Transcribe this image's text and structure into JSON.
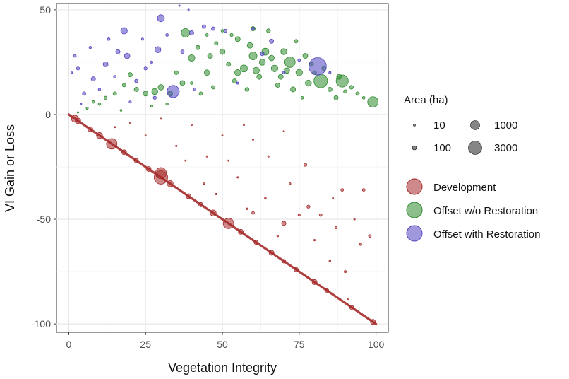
{
  "chart_data": {
    "type": "scatter",
    "xlabel": "Vegetation Integrity",
    "ylabel": "VI Gain or Loss",
    "xlim": [
      -4,
      104
    ],
    "ylim": [
      -104,
      53
    ],
    "x_ticks": [
      0,
      25,
      50,
      75,
      100
    ],
    "y_ticks": [
      -100,
      -50,
      0,
      50
    ],
    "x_tick_labels": [
      "0",
      "25",
      "50",
      "75",
      "100"
    ],
    "y_tick_labels": [
      "-100",
      "-50",
      "0",
      "50"
    ],
    "grid": true,
    "legend_placement": "right",
    "size_legend": {
      "title": "Area (ha)",
      "entries": [
        {
          "label": "10",
          "value": 10
        },
        {
          "label": "1000",
          "value": 1000
        },
        {
          "label": "100",
          "value": 100
        },
        {
          "label": "3000",
          "value": 3000
        }
      ]
    },
    "series": [
      {
        "name": "Development",
        "color": "#a52a2a",
        "diagonal_line": {
          "from": [
            0,
            0
          ],
          "to": [
            100,
            -100
          ]
        },
        "points": [
          [
            2,
            -2,
            400
          ],
          [
            3,
            -3,
            250
          ],
          [
            7,
            -7,
            200
          ],
          [
            10,
            -10,
            300
          ],
          [
            14,
            -14,
            900
          ],
          [
            18,
            -18,
            200
          ],
          [
            22,
            -22,
            150
          ],
          [
            26,
            -26,
            200
          ],
          [
            30,
            -30,
            1500
          ],
          [
            33,
            -33,
            300
          ],
          [
            39,
            -39,
            200
          ],
          [
            43,
            -43,
            150
          ],
          [
            47,
            -47,
            300
          ],
          [
            52,
            -52,
            900
          ],
          [
            56,
            -56,
            200
          ],
          [
            61,
            -61,
            150
          ],
          [
            66,
            -66,
            200
          ],
          [
            70,
            -70,
            120
          ],
          [
            74,
            -74,
            150
          ],
          [
            80,
            -80,
            200
          ],
          [
            84,
            -84,
            120
          ],
          [
            92,
            -92,
            150
          ],
          [
            99,
            -99,
            200
          ],
          [
            30,
            -28,
            1000
          ],
          [
            77,
            -24,
            80
          ],
          [
            78,
            -44,
            80
          ],
          [
            70,
            -52,
            150
          ],
          [
            82,
            -48,
            60
          ],
          [
            89,
            -36,
            60
          ],
          [
            96,
            -36,
            60
          ],
          [
            98,
            -58,
            60
          ],
          [
            95,
            -62,
            40
          ],
          [
            87,
            -54,
            40
          ],
          [
            60,
            -47,
            60
          ],
          [
            75,
            -48,
            40
          ],
          [
            90,
            -75,
            40
          ],
          [
            85,
            -70,
            30
          ],
          [
            64,
            -40,
            30
          ],
          [
            55,
            -30,
            20
          ],
          [
            45,
            -20,
            20
          ],
          [
            35,
            -15,
            20
          ],
          [
            50,
            -10,
            15
          ],
          [
            40,
            -5,
            15
          ],
          [
            65,
            -20,
            20
          ],
          [
            72,
            -33,
            30
          ],
          [
            80,
            -60,
            20
          ],
          [
            58,
            -45,
            25
          ],
          [
            48,
            -38,
            20
          ],
          [
            25,
            -10,
            15
          ],
          [
            15,
            -6,
            10
          ],
          [
            60,
            -12,
            10
          ],
          [
            70,
            -8,
            10
          ],
          [
            38,
            -22,
            15
          ],
          [
            44,
            -33,
            20
          ],
          [
            68,
            -58,
            25
          ],
          [
            91,
            -88,
            20
          ],
          [
            86,
            -40,
            15
          ],
          [
            93,
            -50,
            20
          ],
          [
            52,
            -22,
            12
          ],
          [
            57,
            -5,
            10
          ],
          [
            20,
            -4,
            10
          ],
          [
            30,
            -2,
            10
          ]
        ]
      },
      {
        "name": "Offset w/o Restoration",
        "color": "#2e8b2e",
        "points": [
          [
            82,
            16,
            1500
          ],
          [
            89,
            16,
            1200
          ],
          [
            99,
            6,
            900
          ],
          [
            72,
            25,
            900
          ],
          [
            60,
            28,
            500
          ],
          [
            55,
            20,
            300
          ],
          [
            64,
            30,
            400
          ],
          [
            67,
            22,
            350
          ],
          [
            75,
            20,
            350
          ],
          [
            78,
            15,
            300
          ],
          [
            70,
            30,
            300
          ],
          [
            50,
            30,
            250
          ],
          [
            45,
            20,
            250
          ],
          [
            40,
            27,
            350
          ],
          [
            38,
            39,
            600
          ],
          [
            37,
            15,
            200
          ],
          [
            33,
            10,
            200
          ],
          [
            30,
            13,
            250
          ],
          [
            28,
            11,
            300
          ],
          [
            25,
            10,
            200
          ],
          [
            22,
            12,
            150
          ],
          [
            20,
            19,
            150
          ],
          [
            18,
            14,
            100
          ],
          [
            15,
            10,
            100
          ],
          [
            12,
            8,
            80
          ],
          [
            10,
            5,
            60
          ],
          [
            8,
            6,
            50
          ],
          [
            6,
            3,
            40
          ],
          [
            65,
            40,
            120
          ],
          [
            60,
            41,
            150
          ],
          [
            55,
            36,
            200
          ],
          [
            48,
            34,
            100
          ],
          [
            52,
            24,
            150
          ],
          [
            58,
            12,
            120
          ],
          [
            62,
            18,
            200
          ],
          [
            68,
            14,
            150
          ],
          [
            73,
            12,
            200
          ],
          [
            80,
            20,
            120
          ],
          [
            85,
            12,
            150
          ],
          [
            90,
            11,
            100
          ],
          [
            94,
            10,
            100
          ],
          [
            96,
            8,
            60
          ],
          [
            87,
            8,
            150
          ],
          [
            77,
            28,
            200
          ],
          [
            74,
            35,
            100
          ],
          [
            57,
            22,
            400
          ],
          [
            63,
            25,
            300
          ],
          [
            66,
            27,
            250
          ],
          [
            69,
            18,
            200
          ],
          [
            71,
            21,
            250
          ],
          [
            54,
            16,
            150
          ],
          [
            47,
            13,
            100
          ],
          [
            43,
            10,
            100
          ],
          [
            35,
            20,
            120
          ],
          [
            42,
            32,
            150
          ],
          [
            46,
            28,
            200
          ],
          [
            59,
            33,
            250
          ],
          [
            61,
            21,
            350
          ],
          [
            83,
            22,
            120
          ],
          [
            79,
            24,
            150
          ],
          [
            88,
            18,
            200
          ],
          [
            92,
            13,
            120
          ],
          [
            53,
            38,
            80
          ],
          [
            50,
            40,
            60
          ],
          [
            45,
            38,
            60
          ],
          [
            32,
            5,
            50
          ],
          [
            27,
            4,
            40
          ],
          [
            17,
            2,
            30
          ],
          [
            3,
            1,
            20
          ],
          [
            40,
            15,
            60
          ],
          [
            76,
            8,
            60
          ]
        ]
      },
      {
        "name": "Offset with Restoration",
        "color": "#5244c0",
        "points": [
          [
            81,
            23,
            2500
          ],
          [
            30,
            46,
            400
          ],
          [
            18,
            40,
            350
          ],
          [
            34,
            11,
            1200
          ],
          [
            29,
            31,
            300
          ],
          [
            19,
            28,
            250
          ],
          [
            16,
            30,
            150
          ],
          [
            12,
            24,
            200
          ],
          [
            8,
            17,
            150
          ],
          [
            5,
            10,
            100
          ],
          [
            3,
            22,
            80
          ],
          [
            2,
            28,
            60
          ],
          [
            40,
            39,
            150
          ],
          [
            44,
            42,
            100
          ],
          [
            47,
            41,
            100
          ],
          [
            51,
            40,
            80
          ],
          [
            66,
            35,
            150
          ],
          [
            60,
            41,
            80
          ],
          [
            63,
            29,
            120
          ],
          [
            22,
            16,
            100
          ],
          [
            25,
            22,
            80
          ],
          [
            28,
            8,
            80
          ],
          [
            37,
            30,
            100
          ],
          [
            13,
            36,
            60
          ],
          [
            7,
            32,
            50
          ],
          [
            10,
            12,
            50
          ],
          [
            15,
            18,
            60
          ],
          [
            20,
            6,
            40
          ],
          [
            24,
            36,
            40
          ],
          [
            32,
            38,
            60
          ],
          [
            36,
            52,
            20
          ],
          [
            39,
            50,
            20
          ],
          [
            41,
            12,
            60
          ],
          [
            55,
            15,
            40
          ],
          [
            70,
            20,
            60
          ],
          [
            75,
            26,
            60
          ],
          [
            85,
            20,
            40
          ],
          [
            4,
            5,
            20
          ],
          [
            1,
            20,
            20
          ],
          [
            27,
            25,
            50
          ]
        ]
      }
    ]
  }
}
